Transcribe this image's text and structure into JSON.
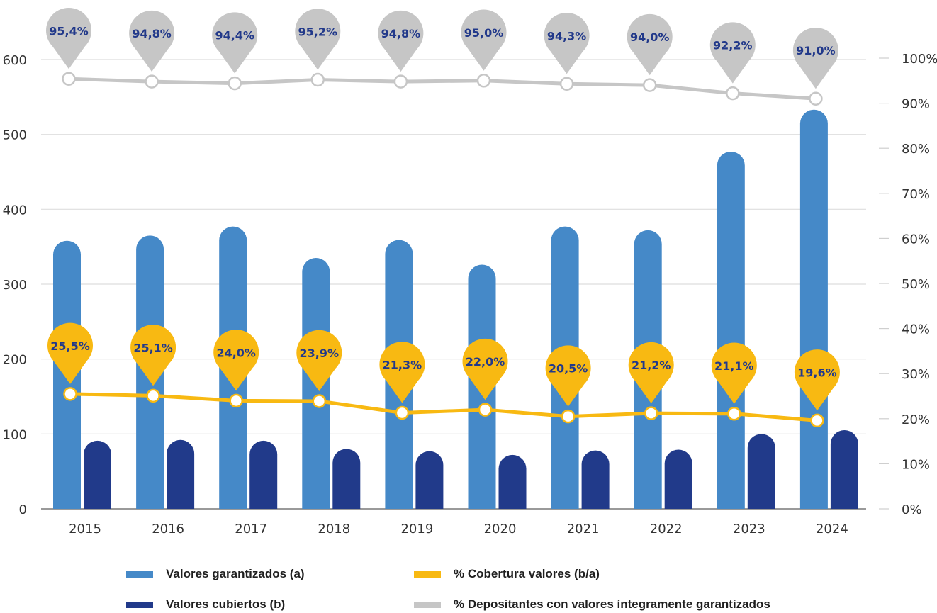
{
  "chart_data": {
    "type": "bar",
    "categories": [
      "2015",
      "2016",
      "2017",
      "2018",
      "2019",
      "2020",
      "2021",
      "2022",
      "2023",
      "2024"
    ],
    "y_left": {
      "ylim": [
        0,
        600
      ],
      "ticks": [
        "0",
        "100",
        "200",
        "300",
        "400",
        "500",
        "600"
      ]
    },
    "y_right": {
      "ylim": [
        0,
        100
      ],
      "ticks": [
        "0%",
        "10%",
        "20%",
        "30%",
        "40%",
        "50%",
        "60%",
        "70%",
        "80%",
        "90%",
        "100%"
      ]
    },
    "grid": true,
    "legend_position": "bottom",
    "series": [
      {
        "name": "Valores garantizados (a)",
        "type": "bar",
        "axis": "left",
        "color": "#4589c8",
        "values": [
          358,
          365,
          377,
          335,
          359,
          326,
          377,
          372,
          477,
          533
        ]
      },
      {
        "name": "Valores cubiertos (b)",
        "type": "bar",
        "axis": "left",
        "color": "#213a8a",
        "values": [
          91,
          92,
          91,
          80,
          77,
          72,
          78,
          79,
          100,
          105
        ]
      },
      {
        "name": "% Cobertura valores (b/a)",
        "type": "line",
        "axis": "right",
        "color": "#f8b912",
        "values": [
          25.5,
          25.1,
          24.0,
          23.9,
          21.3,
          22.0,
          20.5,
          21.2,
          21.1,
          19.6
        ],
        "labels": [
          "25,5%",
          "25,1%",
          "24,0%",
          "23,9%",
          "21,3%",
          "22,0%",
          "20,5%",
          "21,2%",
          "21,1%",
          "19,6%"
        ]
      },
      {
        "name": "% Depositantes con valores íntegramente garantizados",
        "type": "line",
        "axis": "right",
        "color": "#c6c6c6",
        "values": [
          95.4,
          94.8,
          94.4,
          95.2,
          94.8,
          95.0,
          94.3,
          94.0,
          92.2,
          91.0
        ],
        "labels": [
          "95,4%",
          "94,8%",
          "94,4%",
          "95,2%",
          "94,8%",
          "95,0%",
          "94,3%",
          "94,0%",
          "92,2%",
          "91,0%"
        ]
      }
    ]
  }
}
